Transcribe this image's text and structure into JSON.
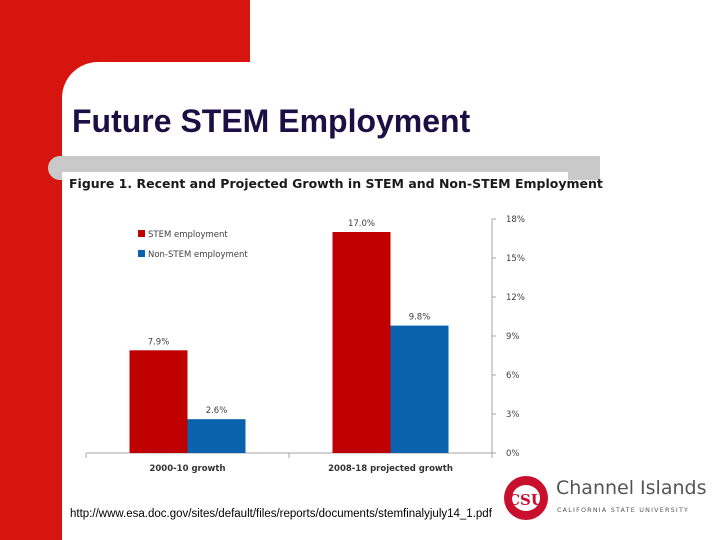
{
  "slide": {
    "title": "Future STEM Employment",
    "source": "http://www.esa.doc.gov/sites/default/files/reports/documents/stemfinalyjuly14_1.pdf"
  },
  "logo": {
    "mark": "CSU",
    "name": "Channel Islands",
    "sub": "CALIFORNIA STATE UNIVERSITY"
  },
  "colors": {
    "slide_accent": "#d7150f",
    "stem": "#c00000",
    "non_stem": "#0a62ad",
    "title": "#1b0f43"
  },
  "chart_data": {
    "type": "bar",
    "title": "Figure 1. Recent and Projected Growth in STEM and Non-STEM Employment",
    "categories": [
      "2000-10 growth",
      "2008-18 projected growth"
    ],
    "series": [
      {
        "name": "STEM employment",
        "values": [
          7.9,
          17.0
        ],
        "labels": [
          "7.9%",
          "17.0%"
        ],
        "color": "#c00000"
      },
      {
        "name": "Non-STEM employment",
        "values": [
          2.6,
          9.8
        ],
        "labels": [
          "2.6%",
          "9.8%"
        ],
        "color": "#0a62ad"
      }
    ],
    "yaxis": {
      "position": "right",
      "min": 0,
      "max": 18,
      "ticks": [
        0,
        3,
        6,
        9,
        12,
        15,
        18
      ],
      "tick_labels": [
        "0%",
        "3%",
        "6%",
        "9%",
        "12%",
        "15%",
        "18%"
      ]
    },
    "ylim": [
      0,
      18
    ],
    "grid": false,
    "legend": "top-left"
  }
}
